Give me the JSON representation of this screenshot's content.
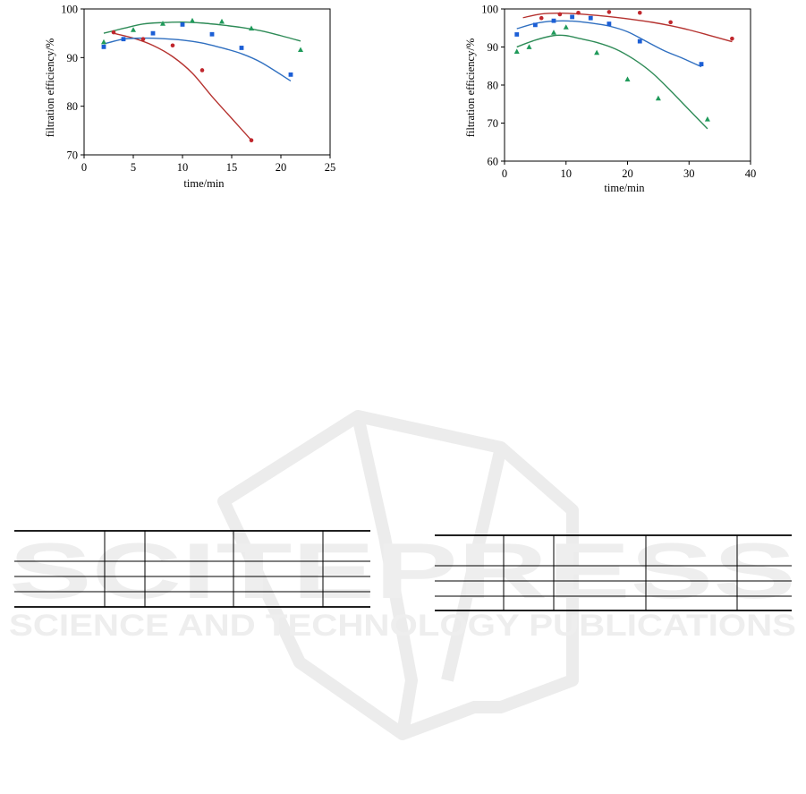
{
  "watermark": {
    "line1": "SCITEPRESS",
    "line2": "SCIENCE AND TECHNOLOGY PUBLICATIONS"
  },
  "colors": {
    "red": "#c0272d",
    "blue": "#1c5fd6",
    "green": "#1f9a5a",
    "curve_red": "#b5322f",
    "curve_blue": "#2f6fc0",
    "curve_green": "#2e8b57"
  },
  "chart_data": [
    {
      "type": "scatter",
      "title": "",
      "xlabel": "time/min",
      "ylabel": "filtration  efficiency/%",
      "xlim": [
        0,
        25
      ],
      "ylim": [
        70,
        100
      ],
      "xticks": [
        0,
        5,
        10,
        15,
        20,
        25
      ],
      "yticks": [
        70,
        80,
        90,
        100
      ],
      "grid": false,
      "series": [
        {
          "color_key": "red",
          "marker": "circle",
          "x": [
            3,
            6,
            9,
            12,
            17
          ],
          "y": [
            95.2,
            93.8,
            92.5,
            87.4,
            73.0
          ],
          "fit": {
            "x": [
              3,
              5,
              7,
              9,
              11,
              13,
              15,
              17
            ],
            "y": [
              95.0,
              94.0,
              92.5,
              90.2,
              86.8,
              82.0,
              77.5,
              73.0
            ]
          }
        },
        {
          "color_key": "blue",
          "marker": "square",
          "x": [
            2,
            4,
            7,
            10,
            13,
            16,
            21
          ],
          "y": [
            92.2,
            93.8,
            95.0,
            96.8,
            94.8,
            92.0,
            86.5
          ],
          "fit": {
            "x": [
              2,
              4,
              6,
              8,
              10,
              12,
              14,
              16,
              18,
              21
            ],
            "y": [
              92.8,
              93.8,
              94.0,
              93.9,
              93.6,
              93.0,
              92.0,
              90.8,
              89.0,
              85.2
            ]
          }
        },
        {
          "color_key": "green",
          "marker": "triangle",
          "x": [
            2,
            5,
            8,
            11,
            14,
            17,
            22
          ],
          "y": [
            93.2,
            95.7,
            97.0,
            97.6,
            97.4,
            96.0,
            91.6
          ],
          "fit": {
            "x": [
              2,
              4,
              6,
              8,
              10,
              12,
              14,
              16,
              18,
              20,
              22
            ],
            "y": [
              95.0,
              96.0,
              96.9,
              97.2,
              97.3,
              97.1,
              96.7,
              96.2,
              95.5,
              94.5,
              93.4
            ]
          }
        }
      ]
    },
    {
      "type": "scatter",
      "title": "",
      "xlabel": "time/min",
      "ylabel": "filtration  efficiency/%",
      "xlim": [
        0,
        40
      ],
      "ylim": [
        60,
        100
      ],
      "xticks": [
        0,
        10,
        20,
        30,
        40
      ],
      "yticks": [
        60,
        70,
        80,
        90,
        100
      ],
      "grid": false,
      "series": [
        {
          "color_key": "red",
          "marker": "circle",
          "x": [
            6,
            9,
            12,
            17,
            22,
            27,
            37
          ],
          "y": [
            97.6,
            98.6,
            99.0,
            99.2,
            99.0,
            96.5,
            92.2
          ],
          "fit": {
            "x": [
              3,
              6,
              9,
              12,
              15,
              18,
              21,
              24,
              27,
              30,
              33,
              37
            ],
            "y": [
              97.7,
              98.7,
              98.9,
              98.7,
              98.3,
              97.8,
              97.2,
              96.5,
              95.6,
              94.5,
              93.2,
              91.4
            ]
          }
        },
        {
          "color_key": "blue",
          "marker": "square",
          "x": [
            2,
            5,
            8,
            11,
            14,
            17,
            22,
            32
          ],
          "y": [
            93.3,
            95.8,
            96.9,
            97.9,
            97.6,
            96.1,
            91.5,
            85.5
          ],
          "fit": {
            "x": [
              2,
              5,
              8,
              11,
              14,
              17,
              20,
              23,
              26,
              29,
              32
            ],
            "y": [
              94.8,
              96.2,
              96.8,
              96.8,
              96.3,
              95.5,
              94.0,
              91.5,
              89.0,
              87.0,
              84.8
            ]
          }
        },
        {
          "color_key": "green",
          "marker": "triangle",
          "x": [
            2,
            4,
            8,
            10,
            15,
            20,
            25,
            33
          ],
          "y": [
            88.8,
            90.0,
            93.8,
            95.2,
            88.5,
            81.5,
            76.5,
            71.0
          ],
          "fit": {
            "x": [
              2,
              5,
              8,
              10,
              12,
              15,
              18,
              21,
              24,
              27,
              30,
              33
            ],
            "y": [
              90.0,
              91.8,
              93.0,
              93.0,
              92.3,
              91.2,
              89.5,
              86.8,
              83.2,
              78.5,
              73.5,
              68.5
            ]
          }
        }
      ]
    }
  ]
}
